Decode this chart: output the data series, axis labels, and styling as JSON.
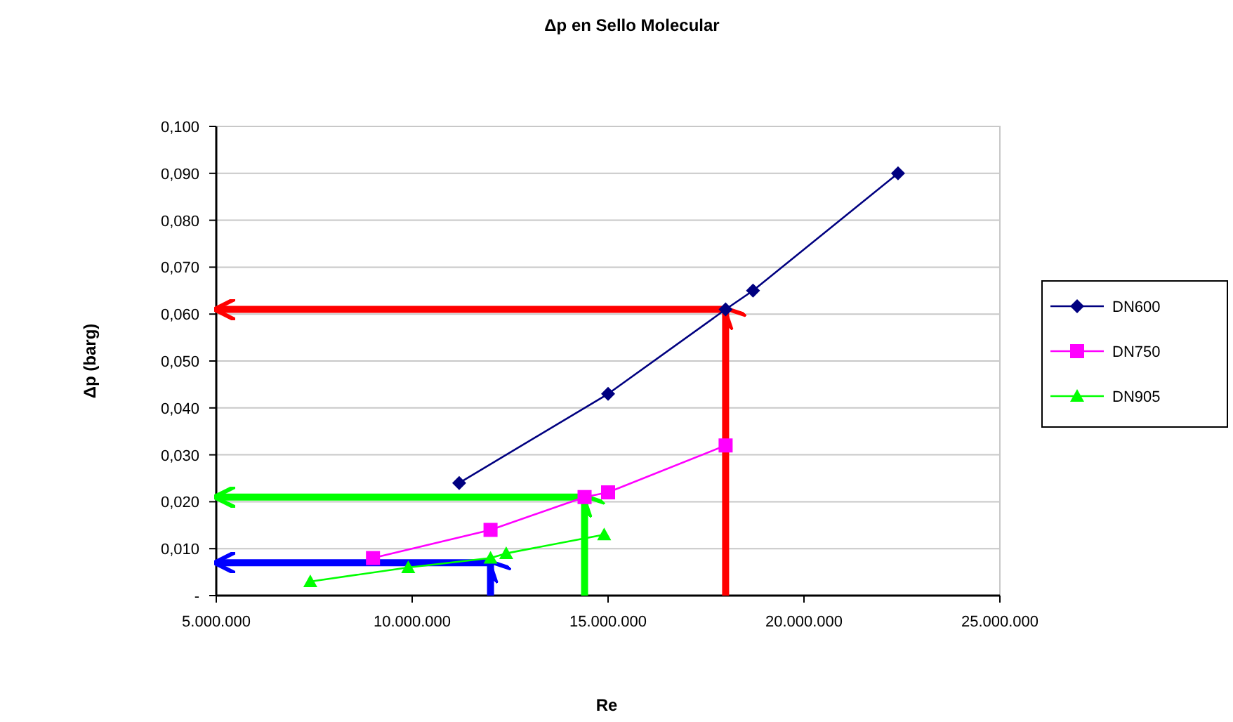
{
  "chart_data": {
    "type": "line",
    "title": "Δp en Sello Molecular",
    "xlabel": "Re",
    "ylabel": "Δp (barg)",
    "xlim": [
      5000000,
      25000000
    ],
    "xticks": [
      {
        "value": 5000000,
        "label": "5.000.000"
      },
      {
        "value": 10000000,
        "label": "10.000.000"
      },
      {
        "value": 15000000,
        "label": "15.000.000"
      },
      {
        "value": 20000000,
        "label": "20.000.000"
      },
      {
        "value": 25000000,
        "label": "25.000.000"
      }
    ],
    "ylim": [
      0,
      0.1
    ],
    "yticks": [
      {
        "value": 0,
        "label": "-"
      },
      {
        "value": 0.01,
        "label": "0,010"
      },
      {
        "value": 0.02,
        "label": "0,020"
      },
      {
        "value": 0.03,
        "label": "0,030"
      },
      {
        "value": 0.04,
        "label": "0,040"
      },
      {
        "value": 0.05,
        "label": "0,050"
      },
      {
        "value": 0.06,
        "label": "0,060"
      },
      {
        "value": 0.07,
        "label": "0,070"
      },
      {
        "value": 0.08,
        "label": "0,080"
      },
      {
        "value": 0.09,
        "label": "0,090"
      },
      {
        "value": 0.1,
        "label": "0,100"
      }
    ],
    "grid": "y",
    "legend": "right",
    "series": [
      {
        "name": "DN600",
        "color": "#000080",
        "marker": "diamond",
        "x": [
          11200000,
          15000000,
          18000000,
          18700000,
          22400000
        ],
        "values": [
          0.024,
          0.043,
          0.061,
          0.065,
          0.09
        ]
      },
      {
        "name": "DN750",
        "color": "#ff00ff",
        "marker": "square",
        "x": [
          9000000,
          12000000,
          14400000,
          15000000,
          18000000
        ],
        "values": [
          0.008,
          0.014,
          0.021,
          0.022,
          0.032
        ]
      },
      {
        "name": "DN905",
        "color": "#00ff00",
        "marker": "triangle",
        "x": [
          7400000,
          9900000,
          12000000,
          12400000,
          14900000
        ],
        "values": [
          0.003,
          0.006,
          0.008,
          0.009,
          0.013
        ]
      },
      {
        "color": "#ff0000",
        "marker": "none",
        "x": [
          18000000,
          18000000,
          5000000
        ],
        "values": [
          0,
          0.061,
          0.061
        ]
      },
      {
        "color": "#00ff00",
        "marker": "none",
        "x": [
          14400000,
          14400000,
          5000000
        ],
        "values": [
          0,
          0.021,
          0.021
        ]
      },
      {
        "color": "#0000ff",
        "marker": "none",
        "x": [
          12000000,
          12000000,
          5000000
        ],
        "values": [
          0,
          0.007,
          0.007
        ]
      }
    ]
  }
}
